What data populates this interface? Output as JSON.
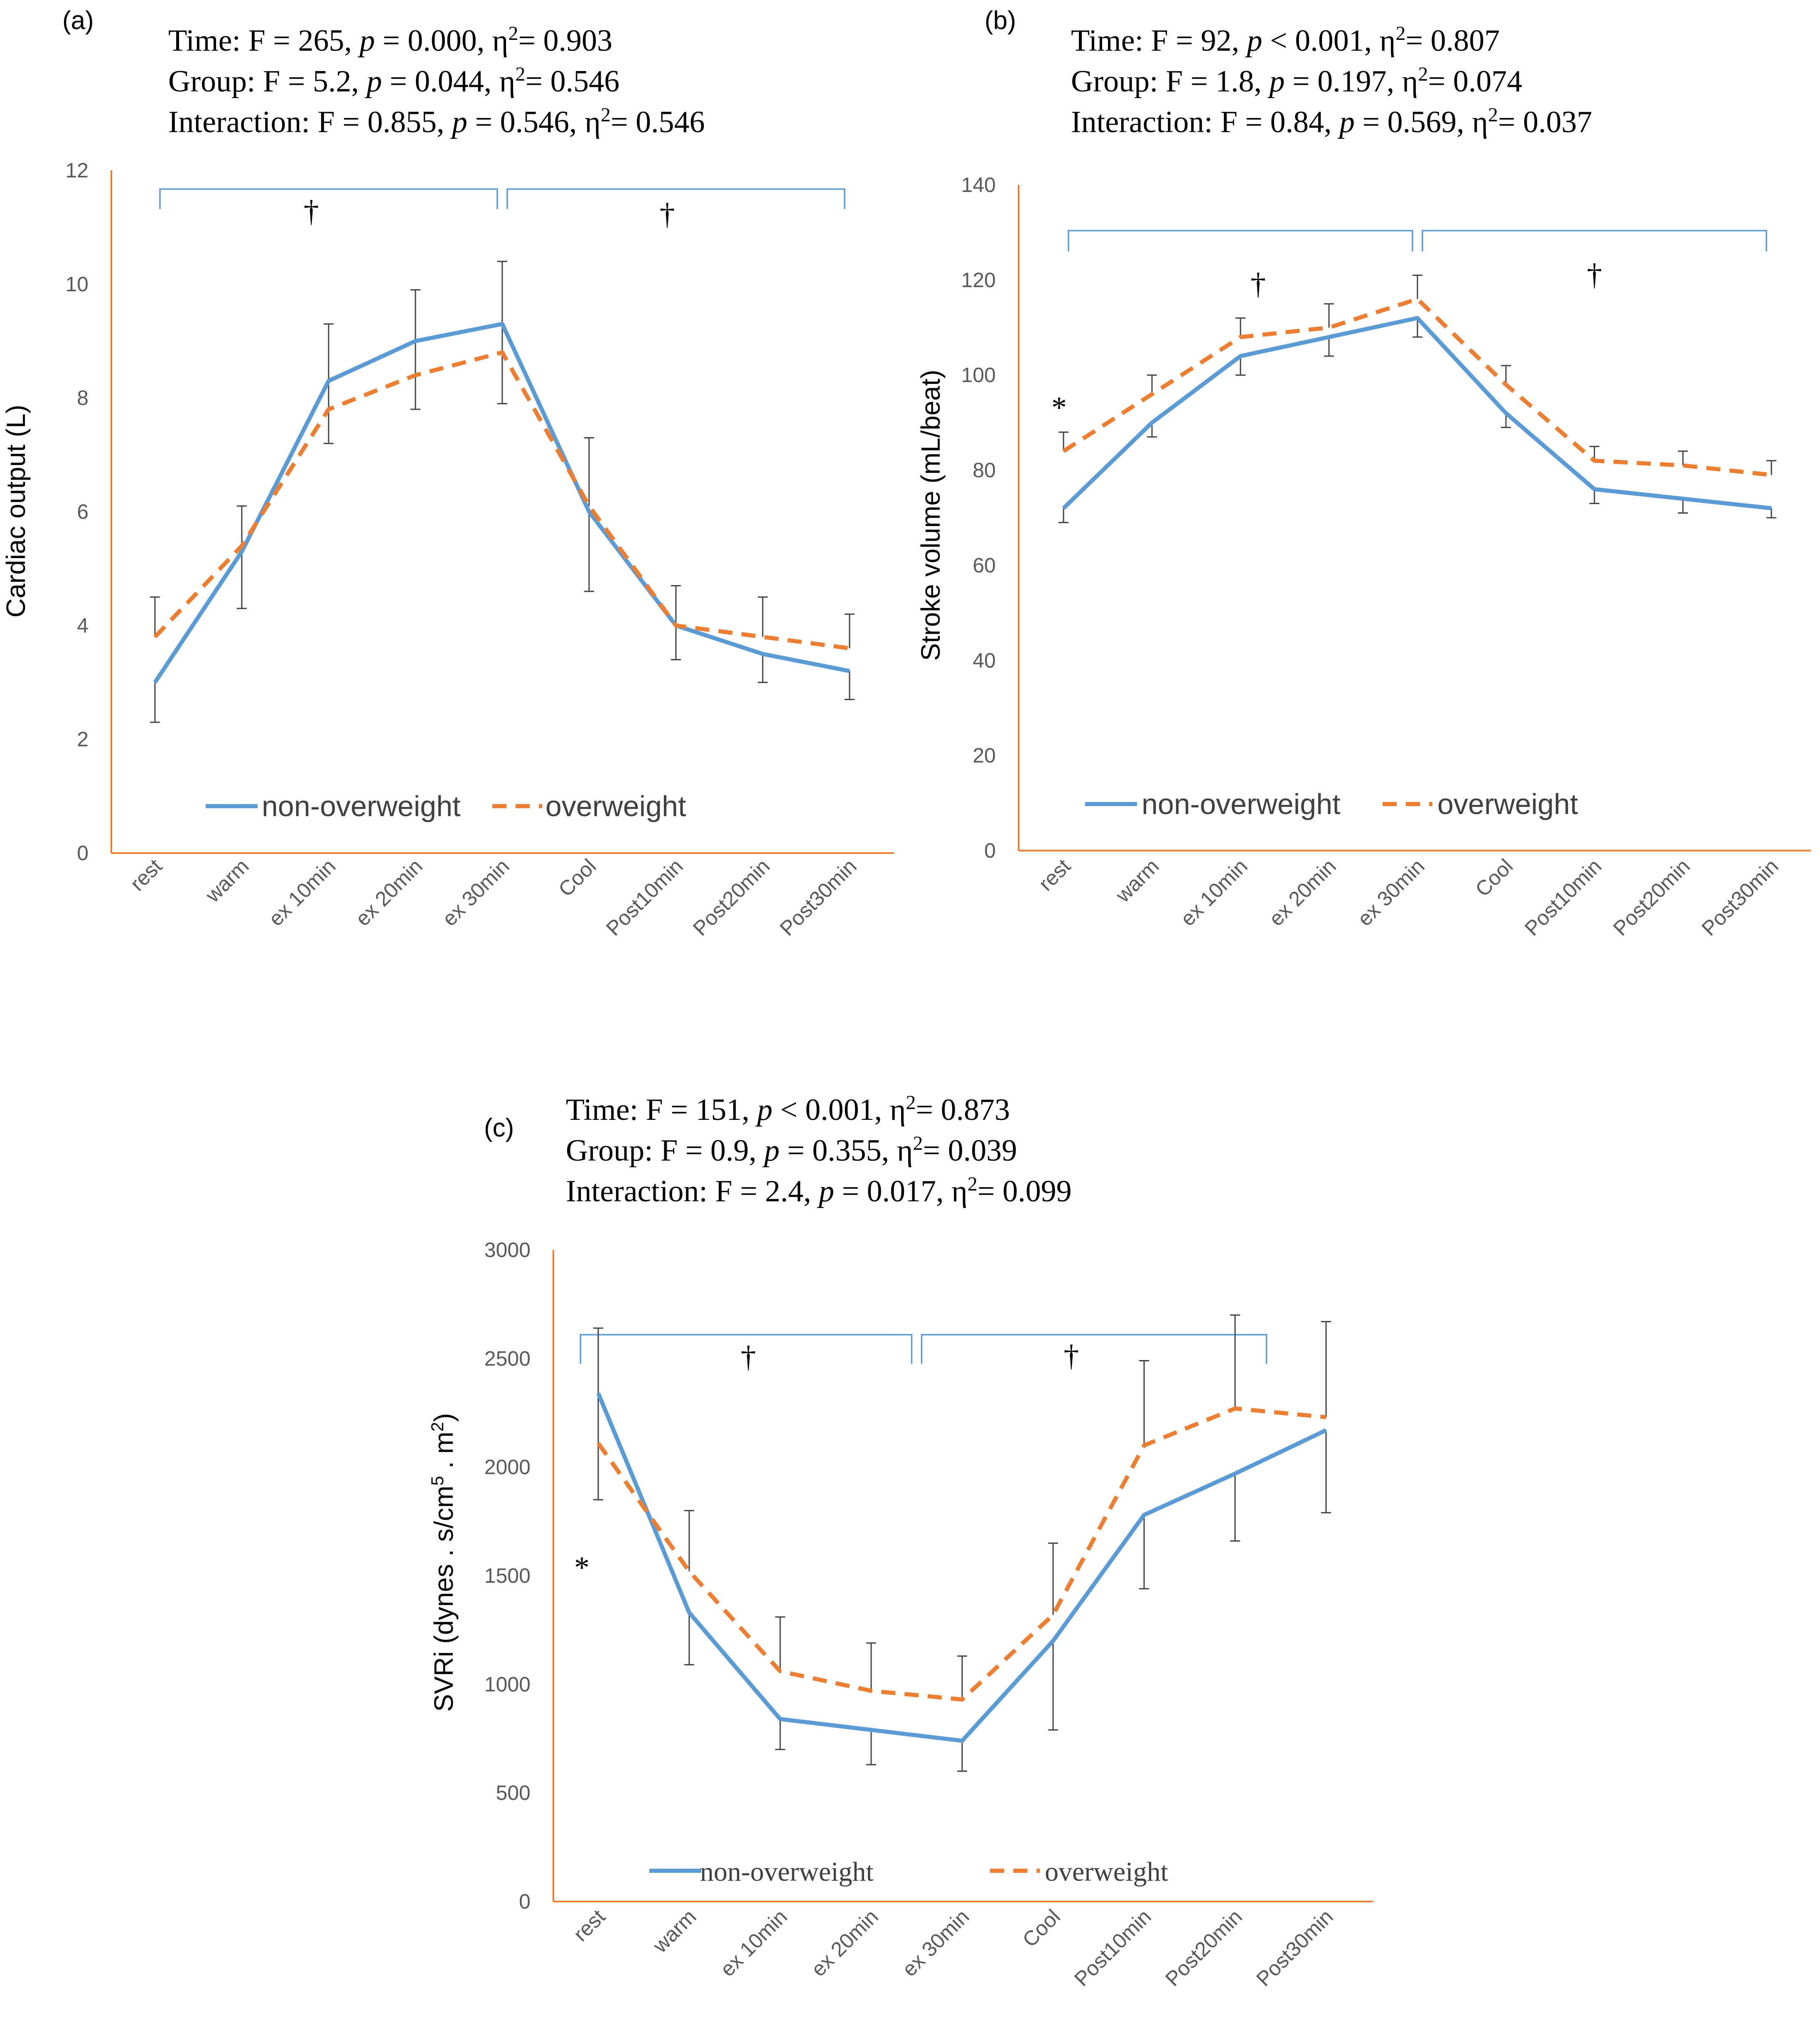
{
  "colors": {
    "non_overweight": "#5B9BD5",
    "overweight": "#ED7D31",
    "axis": "#ED7D31",
    "bracket": "#5B9BD5",
    "error_bar": "#404040"
  },
  "chart_data": [
    {
      "id": "a",
      "type": "line",
      "panel_label": "(a)",
      "stats": [
        {
          "label": "Time:",
          "F": "F = 265,",
          "p": "= 0.000,",
          "eta": "= 0.903"
        },
        {
          "label": "Group:",
          "F": "F = 5.2,",
          "p": "= 0.044,",
          "eta": "= 0.546"
        },
        {
          "label": "Interaction:",
          "F": " F = 0.855,",
          "p": "= 0.546,",
          "eta": "= 0.546"
        }
      ],
      "ylabel": "Cardiac output (L)",
      "ylim": [
        0,
        12
      ],
      "yticks": [
        0,
        2,
        4,
        6,
        8,
        10,
        12
      ],
      "categories": [
        "rest",
        "warm",
        "ex 10min",
        "ex 20min",
        "ex 30min",
        "Cool",
        "Post10min",
        "Post20min",
        "Post30min"
      ],
      "series": [
        {
          "name": "non-overweight",
          "values": [
            3.0,
            5.3,
            8.3,
            9.0,
            9.3,
            6.0,
            4.0,
            3.5,
            3.2
          ],
          "err_down": [
            0.7,
            1.0,
            1.1,
            1.2,
            1.4,
            1.4,
            0.6,
            0.5,
            0.5
          ],
          "err_up": [
            0,
            0,
            0,
            0,
            0,
            0,
            0,
            0,
            0
          ]
        },
        {
          "name": "overweight",
          "values": [
            3.8,
            5.4,
            7.8,
            8.4,
            8.8,
            6.1,
            4.0,
            3.8,
            3.6
          ],
          "err_down": [
            0,
            0,
            0,
            0,
            0,
            0,
            0,
            0,
            0
          ],
          "err_up": [
            0.7,
            0.7,
            1.5,
            1.5,
            1.6,
            1.2,
            0.7,
            0.7,
            0.6
          ]
        }
      ],
      "brackets": [
        [
          0,
          4
        ],
        [
          4,
          8
        ]
      ],
      "daggers": [
        {
          "cat": 1.8,
          "value": 11.1
        },
        {
          "cat": 5.9,
          "value": 11.05
        }
      ],
      "asterisk": null,
      "legend": [
        "non-overweight",
        "overweight"
      ]
    },
    {
      "id": "b",
      "type": "line",
      "panel_label": "(b)",
      "stats": [
        {
          "label": "Time:",
          "F": "F = 92,",
          "p": "< 0.001,",
          "eta": "= 0.807"
        },
        {
          "label": "Group:",
          "F": "F = 1.8,",
          "p": "= 0.197,",
          "eta": "= 0.074"
        },
        {
          "label": "Interaction:",
          "F": " F = 0.84,",
          "p": "= 0.569,",
          "eta": "= 0.037"
        }
      ],
      "ylabel": "Stroke volume (mL/beat)",
      "ylim": [
        0,
        140
      ],
      "yticks": [
        0,
        20,
        40,
        60,
        80,
        100,
        120,
        140
      ],
      "categories": [
        "rest",
        "warm",
        "ex 10min",
        "ex 20min",
        "ex 30min",
        "Cool",
        "Post10min",
        "Post20min",
        "Post30min"
      ],
      "series": [
        {
          "name": "non-overweight",
          "values": [
            72,
            90,
            104,
            108,
            112,
            92,
            76,
            74,
            72
          ],
          "err_down": [
            3,
            3,
            4,
            4,
            4,
            3,
            3,
            3,
            2
          ],
          "err_up": [
            0,
            0,
            0,
            0,
            0,
            0,
            0,
            0,
            0
          ]
        },
        {
          "name": "overweight",
          "values": [
            84,
            96,
            108,
            110,
            116,
            98,
            82,
            81,
            79
          ],
          "err_down": [
            0,
            0,
            0,
            0,
            0,
            0,
            0,
            0,
            0
          ],
          "err_up": [
            4,
            4,
            4,
            5,
            5,
            4,
            3,
            3,
            3
          ]
        }
      ],
      "brackets": [
        [
          0,
          4
        ],
        [
          4,
          8
        ]
      ],
      "daggers": [
        {
          "cat": 2.2,
          "value": 117
        },
        {
          "cat": 6.0,
          "value": 119
        }
      ],
      "asterisk": {
        "text": "*",
        "cat": -0.05,
        "value": 91
      },
      "legend": [
        "non-overweight",
        "overweight"
      ]
    },
    {
      "id": "c",
      "type": "line",
      "panel_label": "(c)",
      "stats": [
        {
          "label": "Time:",
          "F": "F = 151,",
          "p": "< 0.001,",
          "eta": "= 0.873"
        },
        {
          "label": "Group:",
          "F": "F = 0.9,",
          "p": "= 0.355,",
          "eta": "= 0.039"
        },
        {
          "label": "Interaction:",
          "F": " F = 2.4,",
          "p": "= 0.017,",
          "eta": "= 0.099"
        }
      ],
      "ylabel_parts": {
        "main": "SVRi  (dynes . s/cm",
        "sup1": "5",
        "mid": " . m",
        "sup2": "2",
        "end": ")"
      },
      "ylim": [
        0,
        3000
      ],
      "yticks": [
        0,
        500,
        1000,
        1500,
        2000,
        2500,
        3000
      ],
      "categories": [
        "rest",
        "warm",
        "ex 10min",
        "ex 20min",
        "ex 30min",
        "Cool",
        "Post10min",
        "Post20min",
        "Post30min"
      ],
      "series": [
        {
          "name": "non-overweight",
          "values": [
            2340,
            1330,
            840,
            790,
            740,
            1200,
            1780,
            1970,
            2170
          ],
          "err_down": [
            490,
            240,
            140,
            160,
            140,
            410,
            340,
            310,
            380
          ],
          "err_up": [
            0,
            0,
            0,
            0,
            0,
            0,
            0,
            0,
            0
          ]
        },
        {
          "name": "overweight",
          "values": [
            2110,
            1520,
            1060,
            970,
            930,
            1320,
            2100,
            2270,
            2230
          ],
          "err_down": [
            0,
            0,
            0,
            0,
            0,
            0,
            0,
            0,
            0
          ],
          "err_up": [
            530,
            280,
            250,
            220,
            200,
            330,
            390,
            430,
            440
          ]
        }
      ],
      "brackets": [
        [
          -0.25,
          3.5
        ],
        [
          3.5,
          7.4
        ]
      ],
      "daggers": [
        {
          "cat": 1.65,
          "value": 2460
        },
        {
          "cat": 5.2,
          "value": 2465
        }
      ],
      "asterisk": {
        "text": "*",
        "cat": -0.18,
        "value": 1490
      },
      "legend": [
        "non-overweight",
        "overweight"
      ]
    }
  ]
}
